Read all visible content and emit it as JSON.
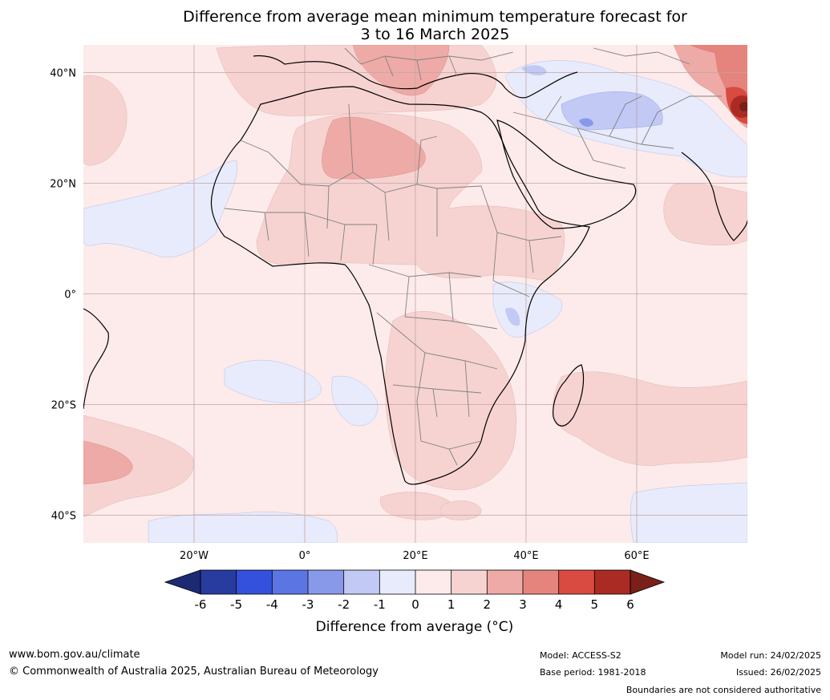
{
  "title": {
    "line1": "Difference from average mean minimum temperature forecast for",
    "line2": "3 to 16 March 2025"
  },
  "map": {
    "lat_labels": [
      "40°N",
      "20°N",
      "0°",
      "20°S",
      "40°S"
    ],
    "lon_labels": [
      "20°W",
      "0°",
      "20°E",
      "40°E",
      "60°E"
    ],
    "lat_values": [
      40,
      20,
      0,
      -20,
      -40
    ],
    "lon_values": [
      -20,
      0,
      20,
      40,
      60
    ],
    "lon_range": [
      -40,
      80
    ],
    "lat_range": [
      -45,
      45
    ],
    "grid": true
  },
  "colorbar": {
    "ticks": [
      "-6",
      "-5",
      "-4",
      "-3",
      "-2",
      "-1",
      "0",
      "1",
      "2",
      "3",
      "4",
      "5",
      "6"
    ],
    "colors": [
      "#283b9f",
      "#3351dc",
      "#5b75e3",
      "#8899ea",
      "#c1c9f4",
      "#e8ebfb",
      "#fcebea",
      "#f6d3d1",
      "#eeaaa6",
      "#e5847d",
      "#d94a40",
      "#a92b23"
    ],
    "under_color": "#1c2a74",
    "over_color": "#7a2018",
    "label": "Difference from average (°C)"
  },
  "footer": {
    "url": "www.bom.gov.au/climate",
    "copyright": "© Commonwealth of Australia 2025, Australian Bureau of Meteorology",
    "model": "Model: ACCESS-S2",
    "base_period": "Base period: 1981-2018",
    "model_run": "Model run: 24/02/2025",
    "issued": "Issued: 26/02/2025",
    "disclaimer": "Boundaries are not considered authoritative"
  }
}
